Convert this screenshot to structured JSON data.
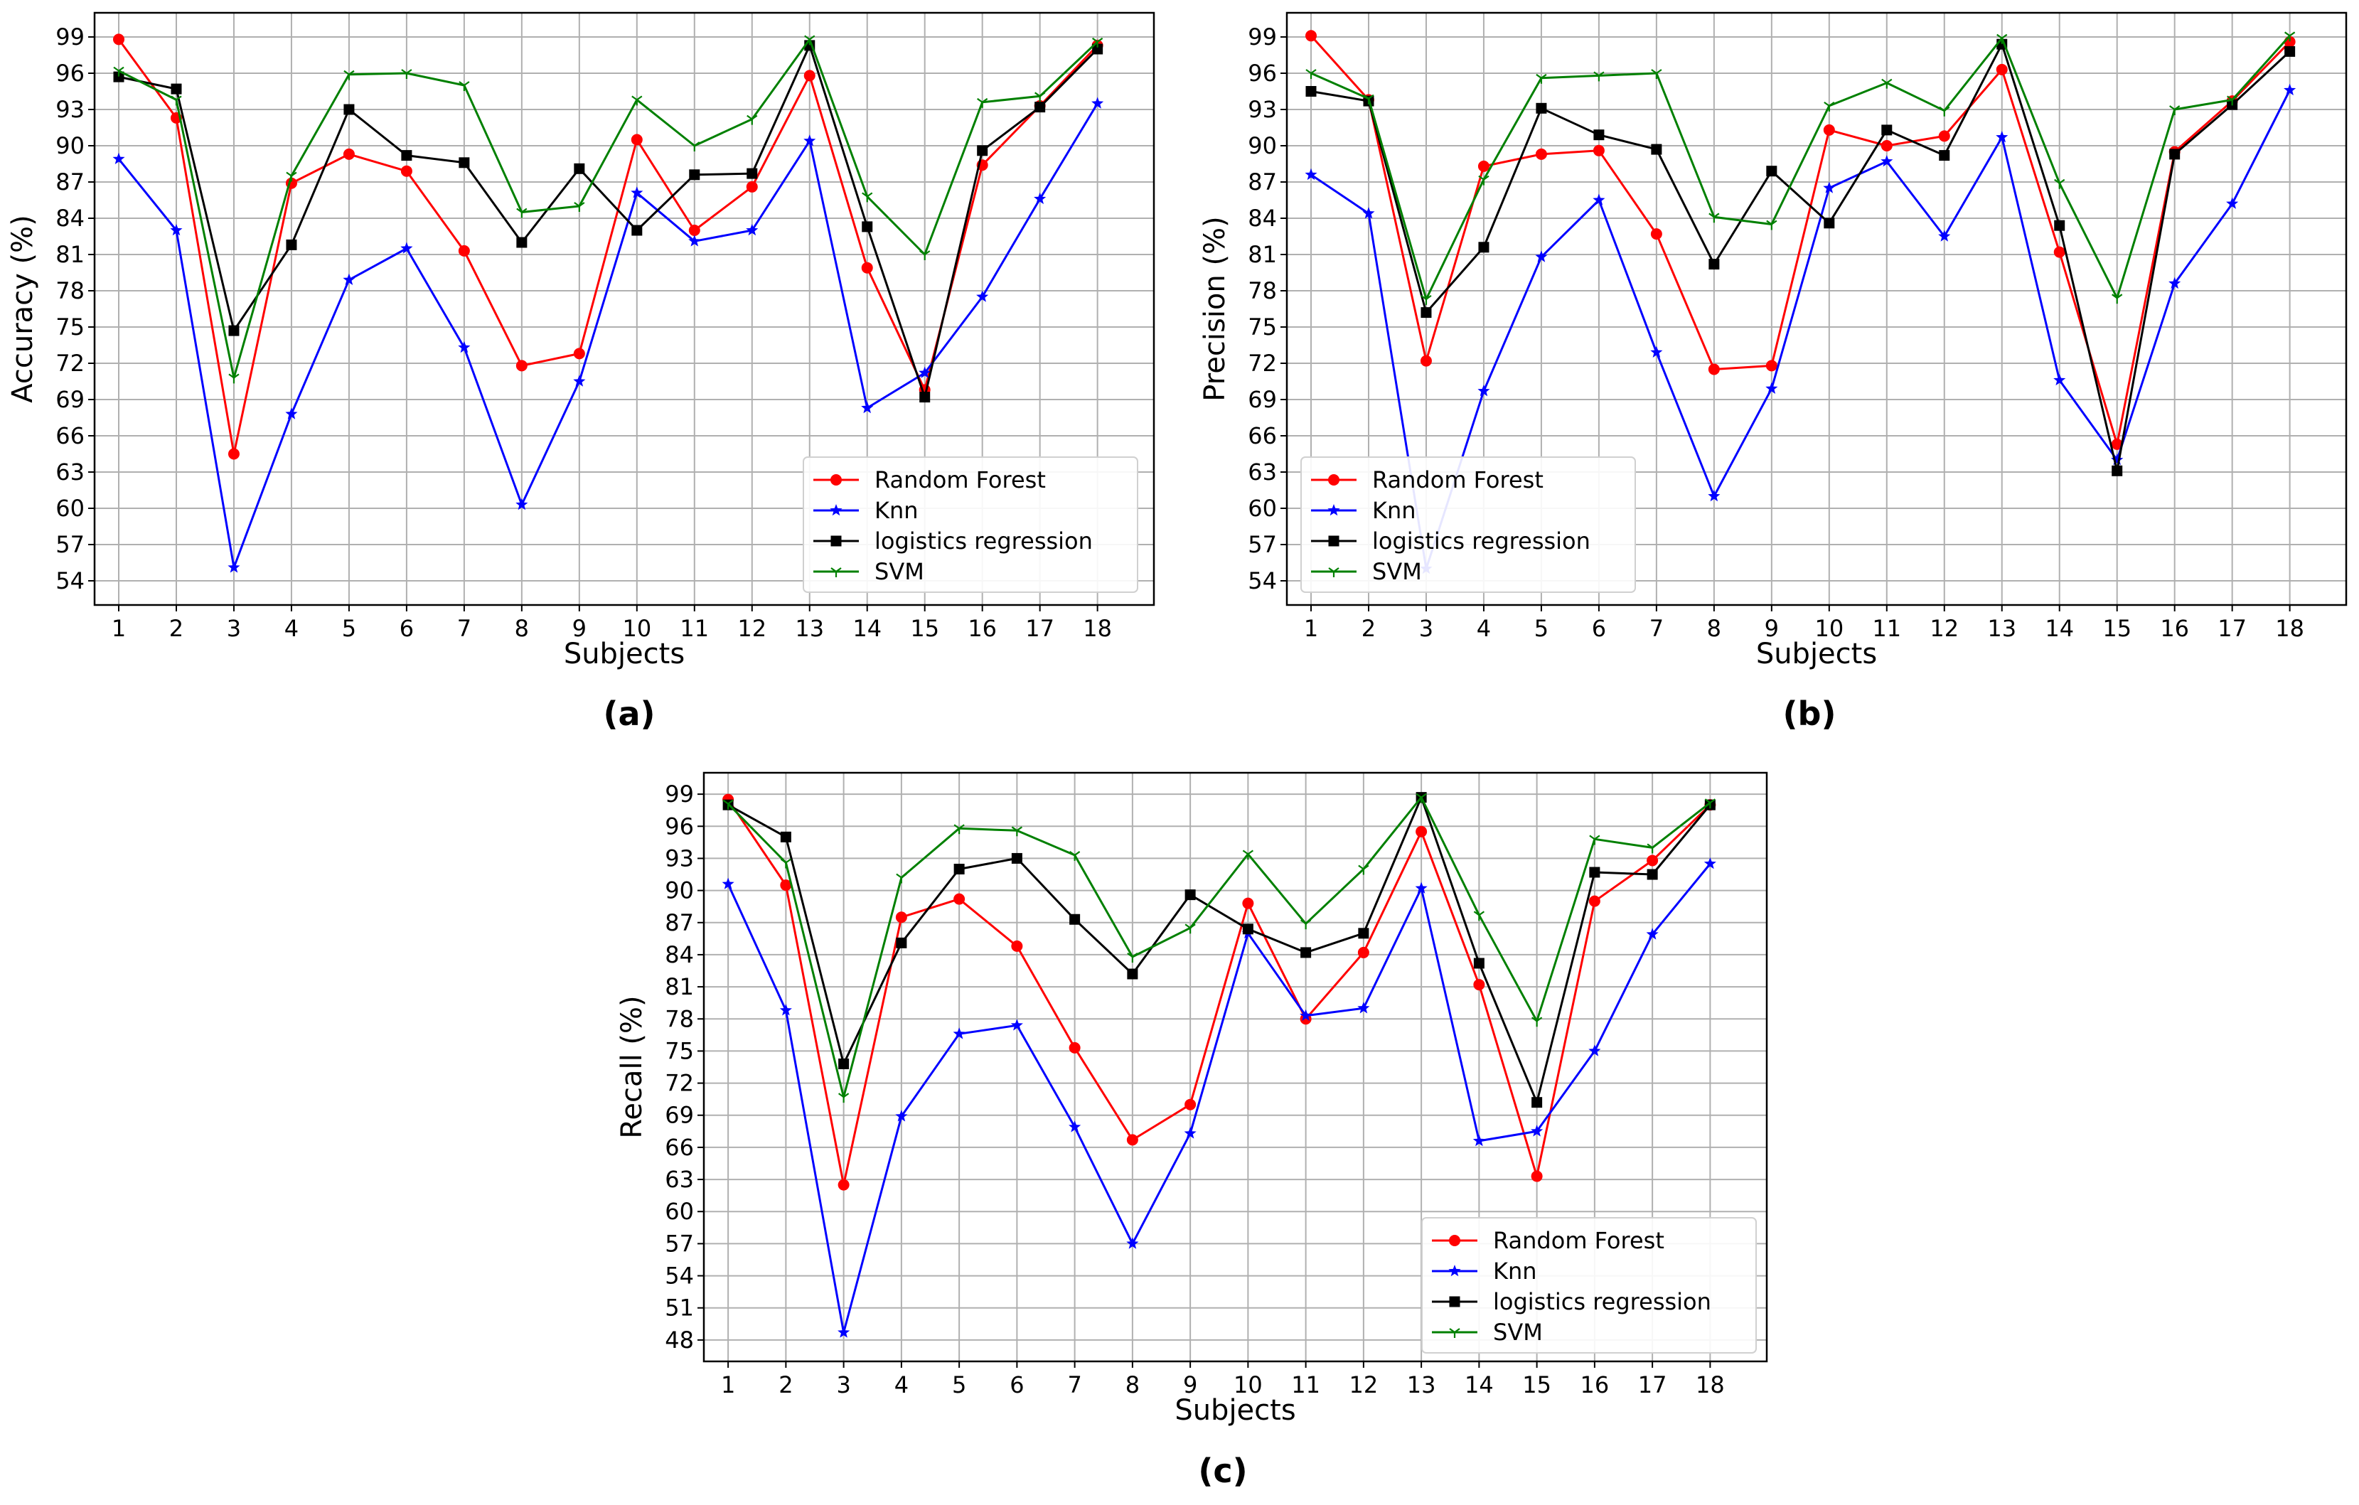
{
  "chart_data": [
    {
      "id": "a",
      "type": "line",
      "caption": "(a)",
      "xlabel": "Subjects",
      "ylabel": "Accuracy (%)",
      "ylim": [
        52,
        101
      ],
      "yticks": [
        54,
        57,
        60,
        63,
        66,
        69,
        72,
        75,
        78,
        81,
        84,
        87,
        90,
        93,
        96,
        99
      ],
      "x": [
        1,
        2,
        3,
        4,
        5,
        6,
        7,
        8,
        9,
        10,
        11,
        12,
        13,
        14,
        15,
        16,
        17,
        18
      ],
      "grid": true,
      "legend_position": "lower-right",
      "series": [
        {
          "name": "Random Forest",
          "color": "#ff0000",
          "marker": "circle",
          "values": [
            98.8,
            92.3,
            64.5,
            86.9,
            89.3,
            87.9,
            81.3,
            71.8,
            72.8,
            90.5,
            83.0,
            86.6,
            95.8,
            79.9,
            69.8,
            88.4,
            93.3,
            98.3
          ]
        },
        {
          "name": "Knn",
          "color": "#0000ff",
          "marker": "star",
          "values": [
            88.9,
            83.0,
            55.1,
            67.8,
            78.9,
            81.5,
            73.3,
            60.3,
            70.5,
            86.1,
            82.1,
            83.0,
            90.4,
            68.3,
            71.2,
            77.5,
            85.6,
            93.5
          ]
        },
        {
          "name": "logistics regression",
          "color": "#000000",
          "marker": "square",
          "values": [
            95.7,
            94.7,
            74.7,
            81.8,
            93.0,
            89.2,
            88.6,
            82.0,
            88.1,
            83.0,
            87.6,
            87.7,
            98.3,
            83.3,
            69.2,
            89.6,
            93.2,
            98.0
          ]
        },
        {
          "name": "SVM",
          "color": "#008000",
          "marker": "tick",
          "values": [
            96.2,
            93.8,
            70.8,
            87.5,
            95.9,
            96.0,
            95.0,
            84.5,
            85.0,
            93.8,
            90.0,
            92.2,
            98.8,
            85.8,
            81.0,
            93.6,
            94.1,
            98.6
          ]
        }
      ]
    },
    {
      "id": "b",
      "type": "line",
      "caption": "(b)",
      "xlabel": "Subjects",
      "ylabel": "Precision (%)",
      "ylim": [
        52,
        101
      ],
      "yticks": [
        54,
        57,
        60,
        63,
        66,
        69,
        72,
        75,
        78,
        81,
        84,
        87,
        90,
        93,
        96,
        99
      ],
      "x": [
        1,
        2,
        3,
        4,
        5,
        6,
        7,
        8,
        9,
        10,
        11,
        12,
        13,
        14,
        15,
        16,
        17,
        18
      ],
      "grid": true,
      "legend_position": "lower-left",
      "series": [
        {
          "name": "Random Forest",
          "color": "#ff0000",
          "marker": "circle",
          "values": [
            99.1,
            93.8,
            72.2,
            88.3,
            89.3,
            89.6,
            82.7,
            71.5,
            71.8,
            91.3,
            90.0,
            90.8,
            96.3,
            81.2,
            65.3,
            89.5,
            93.7,
            98.6
          ]
        },
        {
          "name": "Knn",
          "color": "#0000ff",
          "marker": "star",
          "values": [
            87.6,
            84.4,
            55.0,
            69.7,
            80.8,
            85.5,
            72.9,
            61.0,
            69.9,
            86.5,
            88.7,
            82.5,
            90.7,
            70.6,
            64.0,
            78.6,
            85.2,
            94.6
          ]
        },
        {
          "name": "logistics regression",
          "color": "#000000",
          "marker": "square",
          "values": [
            94.5,
            93.7,
            76.2,
            81.6,
            93.1,
            90.9,
            89.7,
            80.2,
            87.9,
            83.6,
            91.3,
            89.2,
            98.4,
            83.4,
            63.1,
            89.3,
            93.4,
            97.8
          ]
        },
        {
          "name": "SVM",
          "color": "#008000",
          "marker": "tick",
          "values": [
            96.0,
            93.9,
            77.3,
            87.2,
            95.6,
            95.8,
            96.0,
            84.1,
            83.5,
            93.3,
            95.2,
            92.9,
            98.9,
            86.9,
            77.4,
            93.0,
            93.8,
            99.1
          ]
        }
      ]
    },
    {
      "id": "c",
      "type": "line",
      "caption": "(c)",
      "xlabel": "Subjects",
      "ylabel": "Recall (%)",
      "ylim": [
        46,
        101
      ],
      "yticks": [
        48,
        51,
        54,
        57,
        60,
        63,
        66,
        69,
        72,
        75,
        78,
        81,
        84,
        87,
        90,
        93,
        96,
        99
      ],
      "x": [
        1,
        2,
        3,
        4,
        5,
        6,
        7,
        8,
        9,
        10,
        11,
        12,
        13,
        14,
        15,
        16,
        17,
        18
      ],
      "grid": true,
      "legend_position": "lower-right",
      "series": [
        {
          "name": "Random Forest",
          "color": "#ff0000",
          "marker": "circle",
          "values": [
            98.5,
            90.5,
            62.5,
            87.5,
            89.2,
            84.8,
            75.3,
            66.7,
            70.0,
            88.8,
            78.0,
            84.2,
            95.5,
            81.2,
            63.3,
            89.0,
            92.8,
            98.0
          ]
        },
        {
          "name": "Knn",
          "color": "#0000ff",
          "marker": "star",
          "values": [
            90.6,
            78.8,
            48.7,
            68.9,
            76.6,
            77.4,
            67.9,
            57.0,
            67.3,
            86.0,
            78.3,
            79.0,
            90.2,
            66.6,
            67.5,
            75.0,
            85.9,
            92.5
          ]
        },
        {
          "name": "logistics regression",
          "color": "#000000",
          "marker": "square",
          "values": [
            98.0,
            95.0,
            73.8,
            85.1,
            92.0,
            93.0,
            87.3,
            82.2,
            89.6,
            86.4,
            84.2,
            86.0,
            98.7,
            83.2,
            70.2,
            91.7,
            91.5,
            98.0
          ]
        },
        {
          "name": "SVM",
          "color": "#008000",
          "marker": "tick",
          "values": [
            98.1,
            92.6,
            70.7,
            91.2,
            95.8,
            95.6,
            93.3,
            83.8,
            86.5,
            93.4,
            86.9,
            92.0,
            98.7,
            87.7,
            77.8,
            94.8,
            94.0,
            98.2
          ]
        }
      ]
    }
  ]
}
